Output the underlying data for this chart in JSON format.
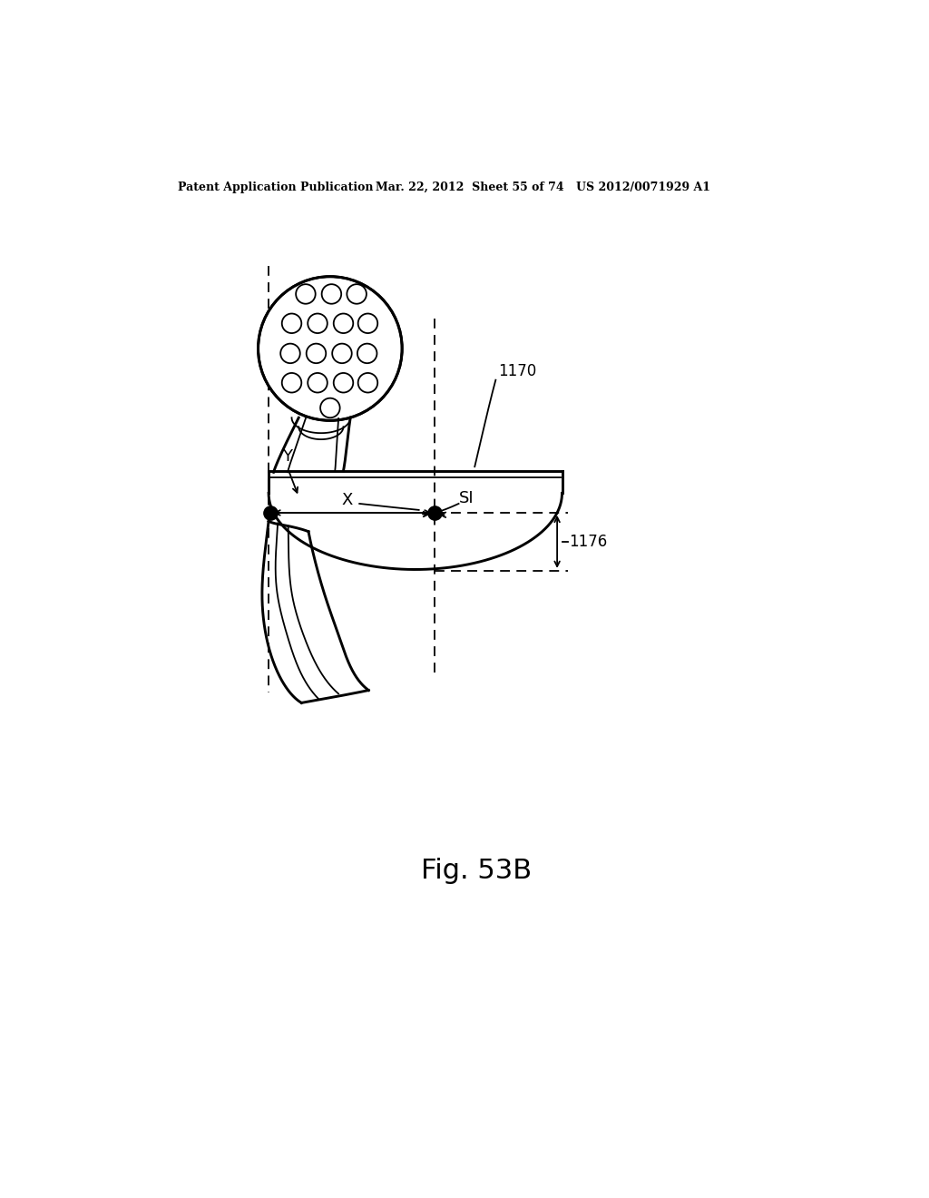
{
  "bg_color": "#ffffff",
  "line_color": "#000000",
  "header_text": "Patent Application Publication",
  "header_date": "Mar. 22, 2012  Sheet 55 of 74",
  "header_patent": "US 2012/0071929 A1",
  "fig_label": "Fig. 53B",
  "label_1170": "1170",
  "label_1176": "1176",
  "label_X": "X",
  "label_SI": "SI",
  "label_Y": "Y"
}
